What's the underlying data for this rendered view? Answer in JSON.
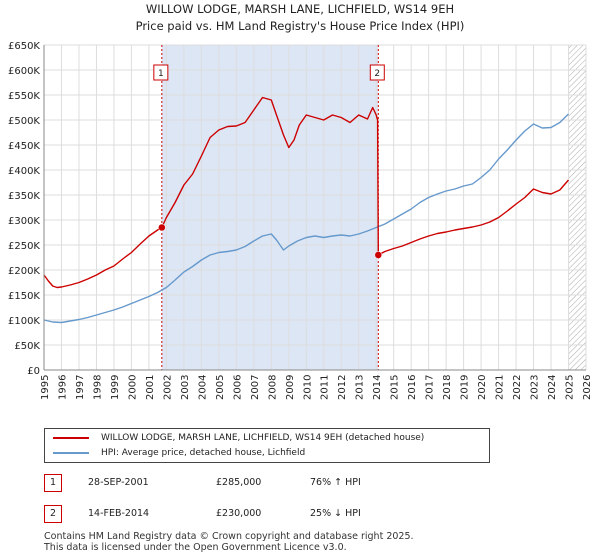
{
  "title": "WILLOW LODGE, MARSH LANE, LICHFIELD, WS14 9EH",
  "subtitle": "Price paid vs. HM Land Registry's House Price Index (HPI)",
  "colors": {
    "property": "#cc0000",
    "hpi": "#6699cc",
    "shade": "#dde6f5",
    "grid": "#dddddd"
  },
  "chart_data": {
    "type": "line",
    "title": "WILLOW LODGE, MARSH LANE, LICHFIELD, WS14 9EH",
    "xlim": [
      1995,
      2026
    ],
    "ylim": [
      0,
      650000
    ],
    "xticks": [
      "1995",
      "1996",
      "1997",
      "1998",
      "1999",
      "2000",
      "2001",
      "2002",
      "2003",
      "2004",
      "2005",
      "2006",
      "2007",
      "2008",
      "2009",
      "2010",
      "2011",
      "2012",
      "2013",
      "2014",
      "2015",
      "2016",
      "2017",
      "2018",
      "2019",
      "2020",
      "2021",
      "2022",
      "2023",
      "2024",
      "2025",
      "2026"
    ],
    "yticks": [
      {
        "value": 0,
        "label": "£0"
      },
      {
        "value": 50000,
        "label": "£50K"
      },
      {
        "value": 100000,
        "label": "£100K"
      },
      {
        "value": 150000,
        "label": "£150K"
      },
      {
        "value": 200000,
        "label": "£200K"
      },
      {
        "value": 250000,
        "label": "£250K"
      },
      {
        "value": 300000,
        "label": "£300K"
      },
      {
        "value": 350000,
        "label": "£350K"
      },
      {
        "value": 400000,
        "label": "£400K"
      },
      {
        "value": 450000,
        "label": "£450K"
      },
      {
        "value": 500000,
        "label": "£500K"
      },
      {
        "value": 550000,
        "label": "£550K"
      },
      {
        "value": 600000,
        "label": "£600K"
      },
      {
        "value": 650000,
        "label": "£650K"
      }
    ],
    "shaded_period": [
      2001.74,
      2014.12
    ],
    "future_hatch_from": 2025.0,
    "series": [
      {
        "name": "WILLOW LODGE, MARSH LANE, LICHFIELD, WS14 9EH (detached house)",
        "x": [
          1995.0,
          1995.25,
          1995.5,
          1995.75,
          1996.0,
          1996.5,
          1997.0,
          1997.5,
          1998.0,
          1998.5,
          1999.0,
          1999.5,
          2000.0,
          2000.5,
          2001.0,
          2001.5,
          2001.74,
          2002.0,
          2002.5,
          2003.0,
          2003.5,
          2004.0,
          2004.5,
          2005.0,
          2005.5,
          2006.0,
          2006.5,
          2007.0,
          2007.5,
          2008.0,
          2008.3,
          2008.7,
          2009.0,
          2009.3,
          2009.6,
          2010.0,
          2010.5,
          2011.0,
          2011.5,
          2012.0,
          2012.5,
          2013.0,
          2013.5,
          2013.8,
          2014.0,
          2014.08,
          2014.12,
          2014.5,
          2015.0,
          2015.5,
          2016.0,
          2016.5,
          2017.0,
          2017.5,
          2018.0,
          2018.5,
          2019.0,
          2019.5,
          2020.0,
          2020.5,
          2021.0,
          2021.5,
          2022.0,
          2022.5,
          2023.0,
          2023.5,
          2024.0,
          2024.5,
          2025.0
        ],
        "y": [
          190000,
          178000,
          168000,
          165000,
          166000,
          170000,
          175000,
          182000,
          190000,
          200000,
          208000,
          222000,
          235000,
          252000,
          268000,
          280000,
          285000,
          305000,
          335000,
          370000,
          392000,
          428000,
          465000,
          480000,
          487000,
          488000,
          495000,
          520000,
          545000,
          540000,
          510000,
          470000,
          445000,
          460000,
          490000,
          510000,
          505000,
          500000,
          510000,
          505000,
          495000,
          510000,
          502000,
          525000,
          510000,
          500000,
          230000,
          237000,
          243000,
          248000,
          255000,
          262000,
          268000,
          273000,
          276000,
          280000,
          283000,
          286000,
          290000,
          296000,
          305000,
          318000,
          332000,
          345000,
          362000,
          355000,
          352000,
          360000,
          380000
        ]
      },
      {
        "name": "HPI: Average price, detached house, Lichfield",
        "x": [
          1995.0,
          1995.5,
          1996.0,
          1996.5,
          1997.0,
          1997.5,
          1998.0,
          1998.5,
          1999.0,
          1999.5,
          2000.0,
          2000.5,
          2001.0,
          2001.5,
          2002.0,
          2002.5,
          2003.0,
          2003.5,
          2004.0,
          2004.5,
          2005.0,
          2005.5,
          2006.0,
          2006.5,
          2007.0,
          2007.5,
          2008.0,
          2008.3,
          2008.7,
          2009.0,
          2009.5,
          2010.0,
          2010.5,
          2011.0,
          2011.5,
          2012.0,
          2012.5,
          2013.0,
          2013.5,
          2014.0,
          2014.5,
          2015.0,
          2015.5,
          2016.0,
          2016.5,
          2017.0,
          2017.5,
          2018.0,
          2018.5,
          2019.0,
          2019.5,
          2020.0,
          2020.5,
          2021.0,
          2021.5,
          2022.0,
          2022.5,
          2023.0,
          2023.5,
          2024.0,
          2024.5,
          2025.0
        ],
        "y": [
          100000,
          96000,
          95000,
          98000,
          101000,
          105000,
          110000,
          115000,
          120000,
          126000,
          133000,
          140000,
          147000,
          155000,
          165000,
          180000,
          196000,
          207000,
          220000,
          230000,
          235000,
          237000,
          240000,
          247000,
          258000,
          268000,
          272000,
          260000,
          240000,
          248000,
          258000,
          265000,
          268000,
          265000,
          268000,
          270000,
          268000,
          272000,
          278000,
          285000,
          292000,
          302000,
          312000,
          322000,
          335000,
          345000,
          352000,
          358000,
          362000,
          368000,
          372000,
          385000,
          400000,
          422000,
          440000,
          460000,
          478000,
          492000,
          484000,
          485000,
          495000,
          512000
        ]
      }
    ],
    "annotations": [
      {
        "label": "1",
        "x": 2001.74,
        "y": 285000
      },
      {
        "label": "2",
        "x": 2014.12,
        "y": 230000
      }
    ]
  },
  "legend": [
    {
      "label": "WILLOW LODGE, MARSH LANE, LICHFIELD, WS14 9EH (detached house)",
      "color": "#cc0000"
    },
    {
      "label": "HPI: Average price, detached house, Lichfield",
      "color": "#6699cc"
    }
  ],
  "transactions": [
    {
      "num": "1",
      "date": "28-SEP-2001",
      "price": "£285,000",
      "hpi": "76% ↑ HPI"
    },
    {
      "num": "2",
      "date": "14-FEB-2014",
      "price": "£230,000",
      "hpi": "25% ↓ HPI"
    }
  ],
  "footer": {
    "line1": "Contains HM Land Registry data © Crown copyright and database right 2025.",
    "line2": "This data is licensed under the Open Government Licence v3.0."
  }
}
